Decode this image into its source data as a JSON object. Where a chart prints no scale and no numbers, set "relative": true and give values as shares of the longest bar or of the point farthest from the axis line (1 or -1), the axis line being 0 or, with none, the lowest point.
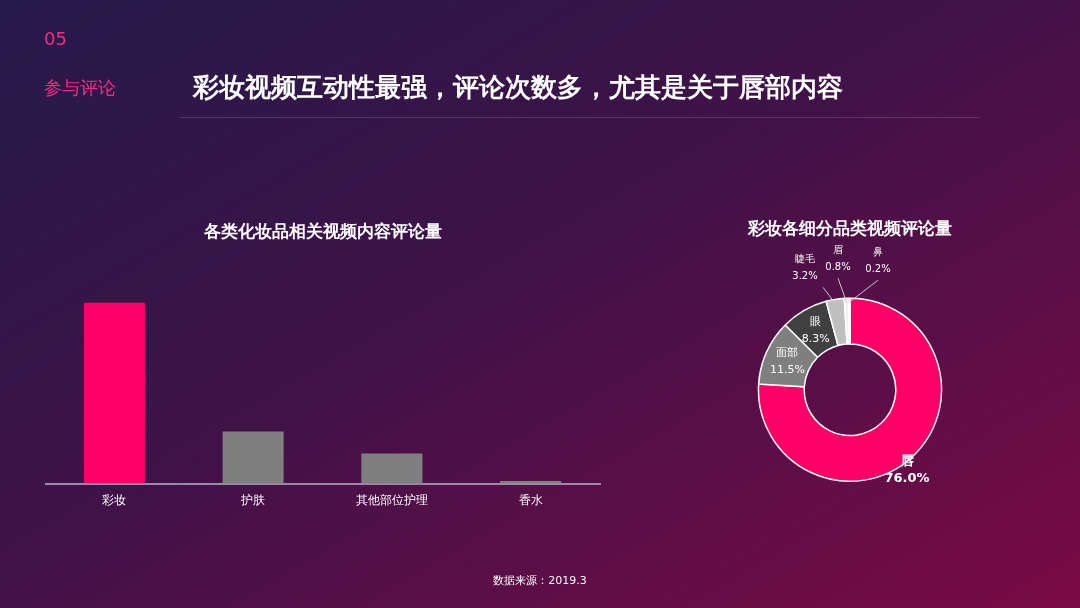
{
  "chart_data": [
    {
      "type": "bar",
      "title": "各类化妆品相关视频内容评论量",
      "categories": [
        "彩妆",
        "护肤",
        "其他部位护理",
        "香水"
      ],
      "relative": true,
      "values": [
        1,
        0.287,
        0.166,
        0.014
      ],
      "colors": [
        "#ff0066",
        "#7f7f7f",
        "#7f7f7f",
        "#7f7f7f"
      ],
      "grid": false,
      "legend": false,
      "annotations": [
        "05",
        "参与评论",
        "彩妆视频互动性最强，评论次数多，尤其是关于唇部内容",
        "数据来源：2019.3"
      ]
    },
    {
      "type": "donut",
      "title": "彩妆各细分品类视频评论量",
      "categories": [
        "唇",
        "面部",
        "眼",
        "睫毛",
        "眉",
        "鼻"
      ],
      "values": [
        76.0,
        11.5,
        8.3,
        3.2,
        0.8,
        0.2
      ],
      "value_labels": [
        "76.0%",
        "11.5%",
        "8.3%",
        "3.2%",
        "0.8%",
        "0.2%"
      ],
      "colors": [
        "#ff0066",
        "#7f7f7f",
        "#404040",
        "#bfbfbf",
        "#f2f2f2",
        "#ff66a3"
      ],
      "legend": false
    }
  ]
}
